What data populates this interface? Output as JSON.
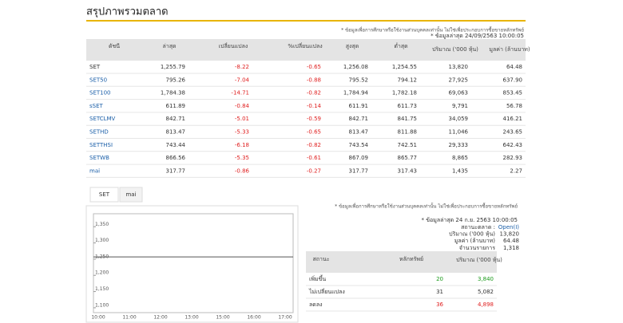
{
  "header": {
    "title": "สรุปภาพรวมตลาด",
    "disclaimer": "* ข้อมูลเพื่อการศึกษาหรือใช้งานส่วนบุคคลเท่านั้น ไม่ใช่เพื่อประกอบการซื้อขายหลักทรัพย์",
    "timestamp": "* ข้อมูลล่าสุด 24/09/2563 10:00:05"
  },
  "table": {
    "columns": [
      "ดัชนี",
      "ล่าสุด",
      "เปลี่ยนแปลง",
      "%เปลี่ยนแปลง",
      "สูงสุด",
      "ต่ำสุด",
      "ปริมาณ ('000 หุ้น)",
      "มูลค่า (ล้านบาท)"
    ],
    "rows": [
      [
        "SET",
        "1,255.79",
        "-8.22",
        "-0.65",
        "1,256.08",
        "1,254.55",
        "13,820",
        "64.48"
      ],
      [
        "SET50",
        "795.26",
        "-7.04",
        "-0.88",
        "795.52",
        "794.12",
        "27,925",
        "637.90"
      ],
      [
        "SET100",
        "1,784.38",
        "-14.71",
        "-0.82",
        "1,784.94",
        "1,782.18",
        "69,063",
        "853.45"
      ],
      [
        "sSET",
        "611.89",
        "-0.84",
        "-0.14",
        "611.91",
        "611.73",
        "9,791",
        "56.78"
      ],
      [
        "SETCLMV",
        "842.71",
        "-5.01",
        "-0.59",
        "842.71",
        "841.75",
        "34,059",
        "416.21"
      ],
      [
        "SETHD",
        "813.47",
        "-5.33",
        "-0.65",
        "813.47",
        "811.88",
        "11,046",
        "243.65"
      ],
      [
        "SETTHSI",
        "743.44",
        "-6.18",
        "-0.82",
        "743.54",
        "742.51",
        "29,333",
        "642.43"
      ],
      [
        "SETWB",
        "866.56",
        "-5.35",
        "-0.61",
        "867.09",
        "865.77",
        "8,865",
        "282.93"
      ],
      [
        "mai",
        "317.77",
        "-0.86",
        "-0.27",
        "317.77",
        "317.43",
        "1,435",
        "2.27"
      ]
    ]
  },
  "tabs": [
    "SET",
    "mai"
  ],
  "chart_data": {
    "type": "line",
    "categories": [
      "10:00",
      "11:00",
      "12:00",
      "13:00",
      "15:00",
      "16:00",
      "17:00"
    ],
    "series": [
      {
        "name": "SET",
        "color": "#555555",
        "values": [
          1257,
          1257,
          1257,
          1257,
          1257,
          1257,
          1257
        ]
      }
    ],
    "ylim": [
      1085,
      1390
    ],
    "yticks": [
      {
        "value": 1100,
        "label": "1,100"
      },
      {
        "value": 1150,
        "label": "1,150"
      },
      {
        "value": 1200,
        "label": "1,200"
      },
      {
        "value": 1250,
        "label": "1,250"
      },
      {
        "value": 1300,
        "label": "1,300"
      },
      {
        "value": 1350,
        "label": "1,350"
      }
    ],
    "grid": false
  },
  "summary": {
    "disclaimer": "* ข้อมูลเพื่อการศึกษาหรือใช้งานส่วนบุคคลเท่านั้น ไม่ใช่เพื่อประกอบการซื้อขายหลักทรัพย์",
    "timestamp": "* ข้อมูลล่าสุด 24 ก.ย. 2563 10:00:05",
    "items": [
      {
        "label": "สถานะตลาด :",
        "value": "Open(I)"
      },
      {
        "label": "ปริมาณ ('000 หุ้น)",
        "value": "13,820"
      },
      {
        "label": "มูลค่า (ล้านบาท)",
        "value": "64.48"
      },
      {
        "label": "จำนวนรายการ",
        "value": "1,318"
      }
    ]
  },
  "breadth": {
    "columns": [
      "สถานะ",
      "หลักทรัพย์",
      "ปริมาณ ('000 หุ้น)"
    ],
    "rows": [
      [
        "เพิ่มขึ้น",
        "20",
        "3,840"
      ],
      [
        "ไม่เปลี่ยนแปลง",
        "31",
        "5,082"
      ],
      [
        "ลดลง",
        "36",
        "4,898"
      ]
    ]
  }
}
